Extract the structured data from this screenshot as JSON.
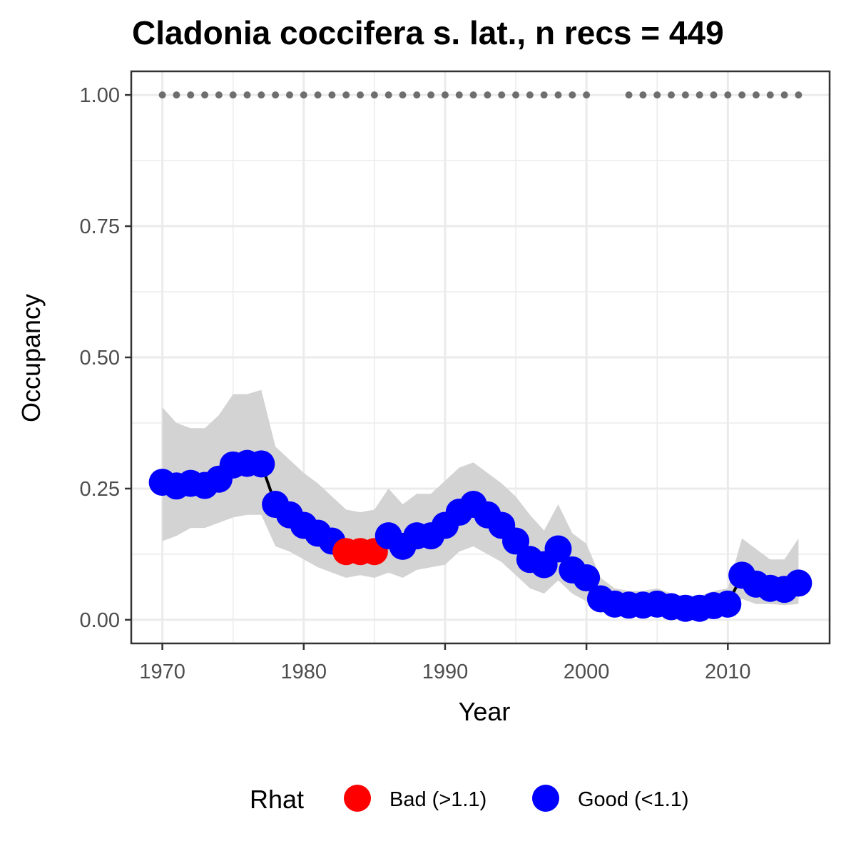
{
  "chart_data": {
    "type": "line",
    "title": "Cladonia coccifera s. lat., n recs = 449",
    "xlabel": "Year",
    "ylabel": "Occupancy",
    "xlim": [
      1967.8,
      2017.2
    ],
    "ylim": [
      -0.045,
      1.045
    ],
    "x_ticks": [
      1970,
      1980,
      1990,
      2000,
      2010
    ],
    "y_ticks": [
      0.0,
      0.25,
      0.5,
      0.75,
      1.0
    ],
    "y_tick_labels": [
      "0.00",
      "0.25",
      "0.50",
      "0.75",
      "1.00"
    ],
    "grid": true,
    "legend_position": "bottom",
    "legend": {
      "title": "Rhat",
      "entries": [
        {
          "label": "Bad (>1.1)",
          "color": "#ff0000"
        },
        {
          "label": "Good (<1.1)",
          "color": "#0000ff"
        }
      ]
    },
    "colors": {
      "bad": "#ff0000",
      "good": "#0000ff",
      "ribbon": "#d3d3d3",
      "line": "#000000",
      "record_dots": "#6e6e6e"
    },
    "x": [
      1970,
      1971,
      1972,
      1973,
      1974,
      1975,
      1976,
      1977,
      1978,
      1979,
      1980,
      1981,
      1982,
      1983,
      1984,
      1985,
      1986,
      1987,
      1988,
      1989,
      1990,
      1991,
      1992,
      1993,
      1994,
      1995,
      1996,
      1997,
      1998,
      1999,
      2000,
      2001,
      2002,
      2003,
      2004,
      2005,
      2006,
      2007,
      2008,
      2009,
      2010,
      2011,
      2012,
      2013,
      2014,
      2015
    ],
    "occupancy": [
      0.262,
      0.255,
      0.26,
      0.256,
      0.268,
      0.295,
      0.298,
      0.297,
      0.22,
      0.2,
      0.18,
      0.165,
      0.15,
      0.13,
      0.13,
      0.13,
      0.16,
      0.14,
      0.16,
      0.16,
      0.18,
      0.205,
      0.22,
      0.2,
      0.18,
      0.15,
      0.115,
      0.105,
      0.135,
      0.095,
      0.08,
      0.04,
      0.03,
      0.028,
      0.028,
      0.03,
      0.025,
      0.022,
      0.022,
      0.027,
      0.03,
      0.085,
      0.068,
      0.06,
      0.058,
      0.07
    ],
    "lower": [
      0.15,
      0.16,
      0.175,
      0.175,
      0.185,
      0.195,
      0.2,
      0.2,
      0.14,
      0.13,
      0.115,
      0.1,
      0.09,
      0.08,
      0.085,
      0.08,
      0.09,
      0.08,
      0.095,
      0.1,
      0.105,
      0.13,
      0.14,
      0.125,
      0.11,
      0.085,
      0.06,
      0.05,
      0.075,
      0.05,
      0.035,
      0.015,
      0.01,
      0.01,
      0.01,
      0.01,
      0.01,
      0.01,
      0.01,
      0.01,
      0.015,
      0.04,
      0.03,
      0.03,
      0.028,
      0.03
    ],
    "upper": [
      0.405,
      0.375,
      0.365,
      0.365,
      0.39,
      0.43,
      0.43,
      0.438,
      0.33,
      0.305,
      0.28,
      0.26,
      0.235,
      0.21,
      0.205,
      0.21,
      0.25,
      0.22,
      0.24,
      0.24,
      0.265,
      0.29,
      0.3,
      0.28,
      0.26,
      0.235,
      0.2,
      0.17,
      0.22,
      0.165,
      0.145,
      0.08,
      0.06,
      0.055,
      0.055,
      0.06,
      0.05,
      0.045,
      0.045,
      0.055,
      0.06,
      0.155,
      0.135,
      0.115,
      0.115,
      0.155
    ],
    "rhat": [
      "Good",
      "Good",
      "Good",
      "Good",
      "Good",
      "Good",
      "Good",
      "Good",
      "Good",
      "Good",
      "Good",
      "Good",
      "Good",
      "Bad",
      "Bad",
      "Bad",
      "Good",
      "Good",
      "Good",
      "Good",
      "Good",
      "Good",
      "Good",
      "Good",
      "Good",
      "Good",
      "Good",
      "Good",
      "Good",
      "Good",
      "Good",
      "Good",
      "Good",
      "Good",
      "Good",
      "Good",
      "Good",
      "Good",
      "Good",
      "Good",
      "Good",
      "Good",
      "Good",
      "Good",
      "Good",
      "Good"
    ],
    "record_years": [
      1970,
      1971,
      1972,
      1973,
      1974,
      1975,
      1976,
      1977,
      1978,
      1979,
      1980,
      1981,
      1982,
      1983,
      1984,
      1985,
      1986,
      1987,
      1988,
      1989,
      1990,
      1991,
      1992,
      1993,
      1994,
      1995,
      1996,
      1997,
      1998,
      1999,
      2000,
      2003,
      2004,
      2005,
      2006,
      2007,
      2008,
      2009,
      2010,
      2011,
      2012,
      2013,
      2014,
      2015
    ],
    "record_value": 1.0
  }
}
